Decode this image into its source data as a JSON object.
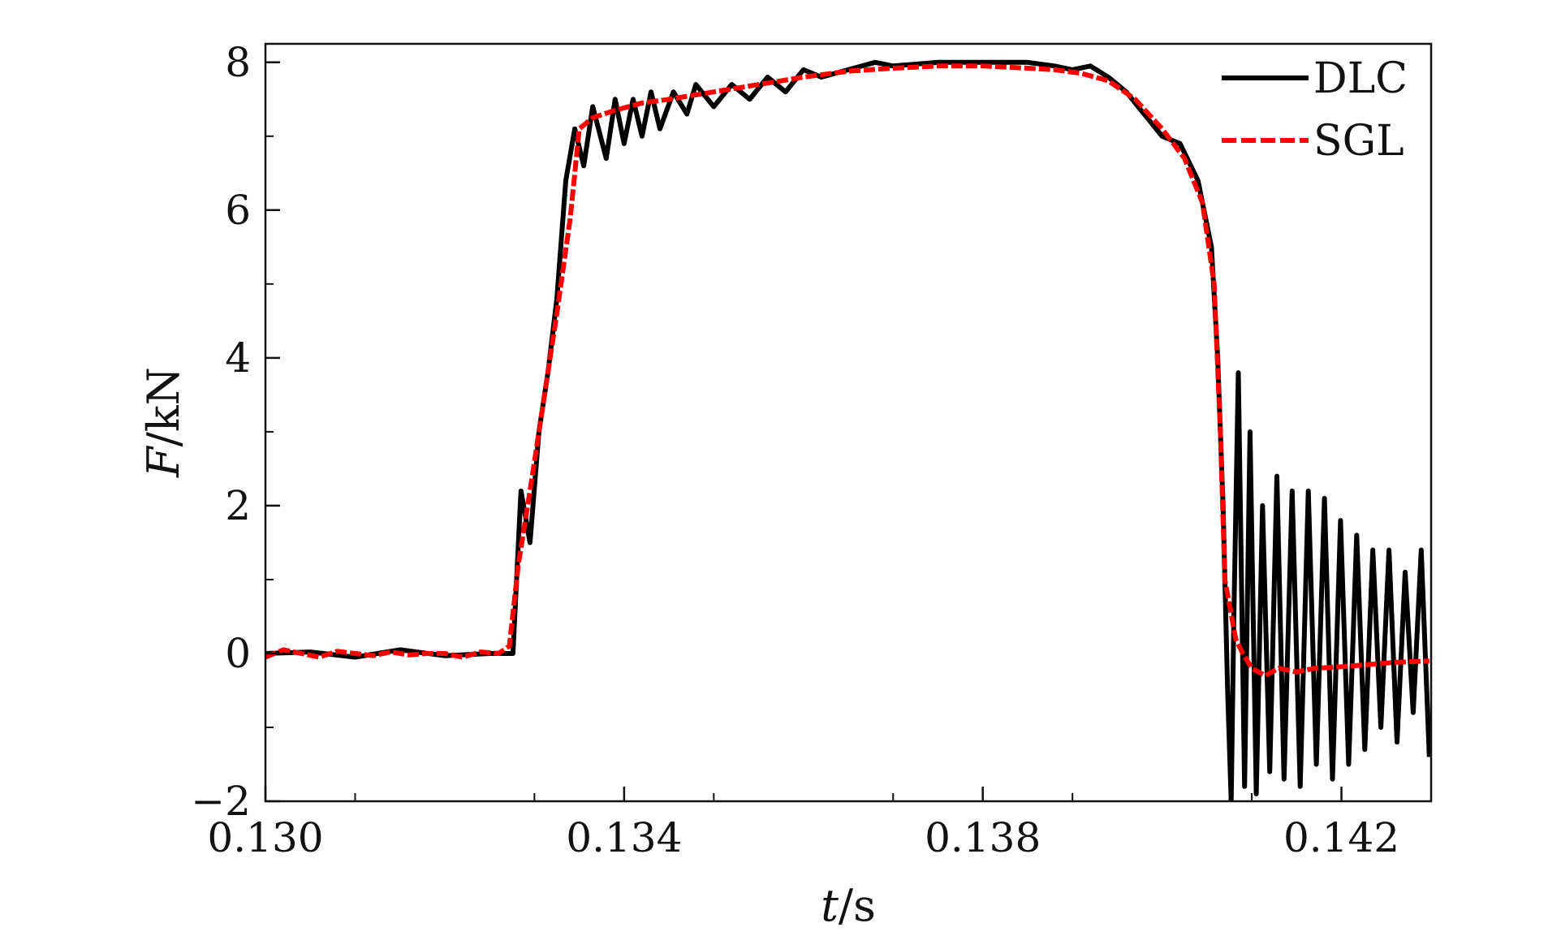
{
  "chart_data": {
    "type": "line",
    "title": "",
    "xlabel_var": "t",
    "xlabel_unit": "/s",
    "ylabel_var": "F",
    "ylabel_unit": "/kN",
    "xlim": [
      0.13,
      0.143
    ],
    "ylim": [
      -2,
      8.25
    ],
    "xticks": [
      0.13,
      0.134,
      0.138,
      0.142
    ],
    "xtick_labels": [
      "0.130",
      "0.134",
      "0.138",
      "0.142"
    ],
    "yticks": [
      -2,
      0,
      2,
      4,
      6,
      8
    ],
    "ytick_labels": [
      "−2",
      "0",
      "2",
      "4",
      "6",
      "8"
    ],
    "grid": false,
    "legend_position": "top-right",
    "series": [
      {
        "name": "DLC",
        "color": "#000000",
        "style": "solid",
        "x": [
          0.13,
          0.1305,
          0.131,
          0.1315,
          0.132,
          0.1325,
          0.13276,
          0.13285,
          0.13295,
          0.13305,
          0.13315,
          0.13325,
          0.13335,
          0.13345,
          0.13355,
          0.13365,
          0.1338,
          0.1339,
          0.134,
          0.1341,
          0.1342,
          0.1343,
          0.1344,
          0.13455,
          0.1347,
          0.1348,
          0.135,
          0.1352,
          0.1354,
          0.1356,
          0.1358,
          0.136,
          0.1362,
          0.1365,
          0.1368,
          0.137,
          0.1375,
          0.138,
          0.1385,
          0.1388,
          0.139,
          0.1392,
          0.1394,
          0.1396,
          0.1398,
          0.14,
          0.1402,
          0.1404,
          0.14055,
          0.14062,
          0.14068,
          0.14073,
          0.14077,
          0.1408,
          0.14085,
          0.14092,
          0.14098,
          0.14105,
          0.14112,
          0.1412,
          0.14128,
          0.14136,
          0.14145,
          0.14154,
          0.14163,
          0.14172,
          0.14181,
          0.1419,
          0.14199,
          0.14208,
          0.14217,
          0.14226,
          0.14235,
          0.14244,
          0.14253,
          0.14262,
          0.14271,
          0.1428,
          0.14289,
          0.14298
        ],
        "y": [
          0.0,
          0.02,
          -0.05,
          0.05,
          -0.03,
          0.0,
          0.0,
          2.2,
          1.5,
          3.0,
          3.8,
          4.8,
          6.4,
          7.1,
          6.6,
          7.4,
          6.7,
          7.5,
          6.9,
          7.5,
          7.0,
          7.6,
          7.1,
          7.6,
          7.3,
          7.7,
          7.4,
          7.7,
          7.5,
          7.8,
          7.6,
          7.9,
          7.8,
          7.9,
          8.0,
          7.95,
          8.0,
          8.0,
          8.0,
          7.95,
          7.9,
          7.95,
          7.8,
          7.6,
          7.3,
          7.0,
          6.9,
          6.4,
          5.5,
          4.0,
          2.0,
          -0.5,
          -2.0,
          0.5,
          3.8,
          -1.8,
          3.0,
          -1.9,
          2.0,
          -1.6,
          2.4,
          -1.7,
          2.2,
          -1.8,
          2.2,
          -1.5,
          2.1,
          -1.7,
          1.8,
          -1.5,
          1.6,
          -1.3,
          1.4,
          -1.0,
          1.4,
          -1.2,
          1.1,
          -0.8,
          1.4,
          -1.4
        ]
      },
      {
        "name": "SGL",
        "color": "#ff0000",
        "style": "dashed",
        "x": [
          0.13,
          0.1302,
          0.1304,
          0.1306,
          0.1308,
          0.131,
          0.1312,
          0.1314,
          0.1316,
          0.1318,
          0.132,
          0.1322,
          0.1324,
          0.1326,
          0.13272,
          0.13282,
          0.13295,
          0.1331,
          0.13325,
          0.1334,
          0.1335,
          0.13365,
          0.1339,
          0.1342,
          0.1345,
          0.135,
          0.1355,
          0.136,
          0.1365,
          0.137,
          0.1375,
          0.138,
          0.1385,
          0.1388,
          0.1391,
          0.1394,
          0.1397,
          0.14,
          0.14025,
          0.14045,
          0.14058,
          0.14065,
          0.1407,
          0.14076,
          0.14082,
          0.1409,
          0.141,
          0.14115,
          0.1413,
          0.1415,
          0.1417,
          0.142,
          0.1423,
          0.1426,
          0.14298
        ],
        "y": [
          -0.05,
          0.05,
          0.0,
          -0.05,
          0.03,
          0.0,
          -0.03,
          0.02,
          -0.02,
          0.0,
          0.0,
          -0.05,
          0.02,
          0.0,
          0.1,
          1.2,
          2.2,
          3.4,
          4.6,
          5.9,
          7.1,
          7.25,
          7.35,
          7.45,
          7.5,
          7.6,
          7.7,
          7.8,
          7.88,
          7.92,
          7.95,
          7.95,
          7.92,
          7.9,
          7.85,
          7.75,
          7.5,
          7.1,
          6.7,
          6.1,
          5.0,
          3.0,
          1.0,
          0.6,
          0.2,
          0.0,
          -0.2,
          -0.3,
          -0.2,
          -0.25,
          -0.2,
          -0.18,
          -0.15,
          -0.12,
          -0.1
        ]
      }
    ]
  }
}
